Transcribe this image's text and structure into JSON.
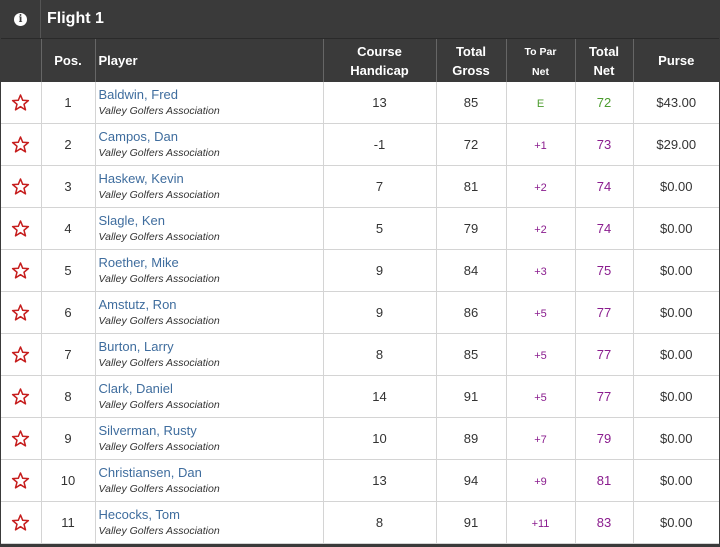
{
  "flight": {
    "title": "Flight 1",
    "info_icon": "info-icon"
  },
  "columns": {
    "pos": "Pos.",
    "player": "Player",
    "course_handicap_1": "Course",
    "course_handicap_2": "Handicap",
    "total_gross_1": "Total",
    "total_gross_2": "Gross",
    "to_par_net_1": "To Par",
    "to_par_net_2": "Net",
    "total_net_1": "Total",
    "total_net_2": "Net",
    "purse": "Purse"
  },
  "colors": {
    "header_bg": "#3a3a3a",
    "star": "#c61e1e",
    "link": "#3f6d9e",
    "over_par": "#8a1c8e",
    "even_par": "#4c9c2e"
  },
  "rows": [
    {
      "pos": "1",
      "name": "Baldwin, Fred",
      "org": "Valley Golfers Association",
      "handicap": "13",
      "gross": "85",
      "topar": "E",
      "net": "72",
      "purse": "$43.00",
      "even": true
    },
    {
      "pos": "2",
      "name": "Campos, Dan",
      "org": "Valley Golfers Association",
      "handicap": "-1",
      "gross": "72",
      "topar": "+1",
      "net": "73",
      "purse": "$29.00"
    },
    {
      "pos": "3",
      "name": "Haskew, Kevin",
      "org": "Valley Golfers Association",
      "handicap": "7",
      "gross": "81",
      "topar": "+2",
      "net": "74",
      "purse": "$0.00"
    },
    {
      "pos": "4",
      "name": "Slagle, Ken",
      "org": "Valley Golfers Association",
      "handicap": "5",
      "gross": "79",
      "topar": "+2",
      "net": "74",
      "purse": "$0.00"
    },
    {
      "pos": "5",
      "name": "Roether, Mike",
      "org": "Valley Golfers Association",
      "handicap": "9",
      "gross": "84",
      "topar": "+3",
      "net": "75",
      "purse": "$0.00"
    },
    {
      "pos": "6",
      "name": "Amstutz, Ron",
      "org": "Valley Golfers Association",
      "handicap": "9",
      "gross": "86",
      "topar": "+5",
      "net": "77",
      "purse": "$0.00"
    },
    {
      "pos": "7",
      "name": "Burton, Larry",
      "org": "Valley Golfers Association",
      "handicap": "8",
      "gross": "85",
      "topar": "+5",
      "net": "77",
      "purse": "$0.00"
    },
    {
      "pos": "8",
      "name": "Clark, Daniel",
      "org": "Valley Golfers Association",
      "handicap": "14",
      "gross": "91",
      "topar": "+5",
      "net": "77",
      "purse": "$0.00"
    },
    {
      "pos": "9",
      "name": "Silverman, Rusty",
      "org": "Valley Golfers Association",
      "handicap": "10",
      "gross": "89",
      "topar": "+7",
      "net": "79",
      "purse": "$0.00"
    },
    {
      "pos": "10",
      "name": "Christiansen, Dan",
      "org": "Valley Golfers Association",
      "handicap": "13",
      "gross": "94",
      "topar": "+9",
      "net": "81",
      "purse": "$0.00"
    },
    {
      "pos": "11",
      "name": "Hecocks, Tom",
      "org": "Valley Golfers Association",
      "handicap": "8",
      "gross": "91",
      "topar": "+11",
      "net": "83",
      "purse": "$0.00"
    }
  ]
}
